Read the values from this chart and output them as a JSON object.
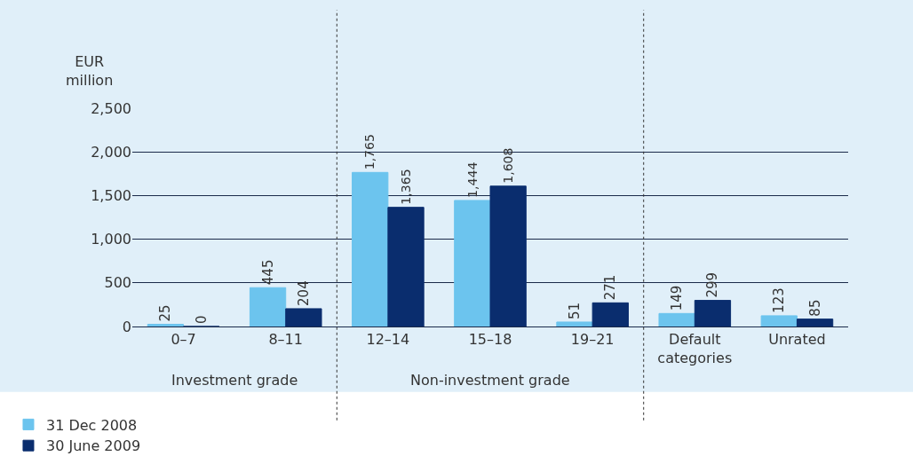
{
  "chart_data": {
    "type": "bar",
    "ylabel": "EUR million",
    "categories": [
      "0–7",
      "8–11",
      "12–14",
      "15–18",
      "19–21",
      "Default\ncategories",
      "Unrated"
    ],
    "series": [
      {
        "name": "31 Dec 2008",
        "color": "#6cc4ee",
        "values": [
          25,
          445,
          1765,
          1444,
          51,
          149,
          123
        ],
        "value_labels": [
          "25",
          "445",
          "1,765",
          "1,444",
          "51",
          "149",
          "123"
        ]
      },
      {
        "name": "30 June 2009",
        "color": "#0a2d6e",
        "values": [
          0,
          204,
          1365,
          1608,
          271,
          299,
          85
        ],
        "value_labels": [
          "0",
          "204",
          "1,365",
          "1,608",
          "271",
          "299",
          "85"
        ]
      }
    ],
    "ylim": [
      0,
      2500
    ],
    "yticks": [
      {
        "value": 0,
        "label": "0"
      },
      {
        "value": 500,
        "label": "500"
      },
      {
        "value": 1000,
        "label": "1,000"
      },
      {
        "value": 1500,
        "label": "1,500"
      },
      {
        "value": 2000,
        "label": "2,000"
      },
      {
        "value": 2500,
        "label": "2,500"
      }
    ],
    "grid": "y",
    "legend": "bottom left",
    "annotations": [
      "Investment grade",
      "Non-investment grade"
    ]
  }
}
